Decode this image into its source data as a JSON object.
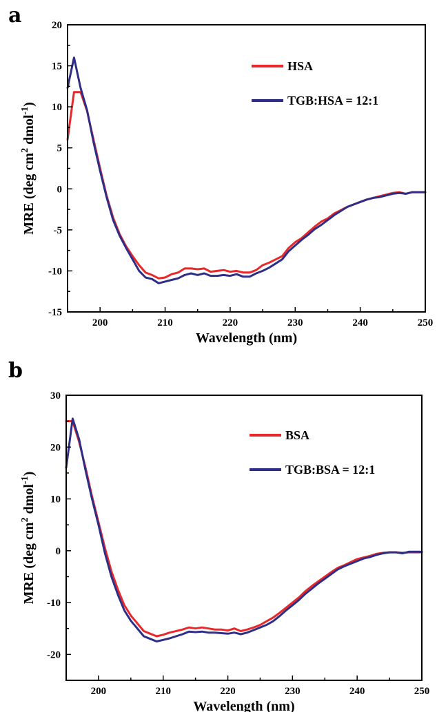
{
  "chart_data": [
    {
      "type": "line",
      "panel_label": "a",
      "xlabel": "Wavelength (nm)",
      "ylabel": "MRE (deg cm",
      "ylabel_sup": "2",
      "ylabel_mid": " dmol",
      "ylabel_sup2": "-1",
      "ylabel_end": ")",
      "xlim": [
        195,
        250
      ],
      "ylim": [
        -15,
        20
      ],
      "xticks": [
        200,
        210,
        220,
        230,
        240,
        250
      ],
      "yticks": [
        -15,
        -10,
        -5,
        0,
        5,
        10,
        15,
        20
      ],
      "legend_position": "top-right",
      "series": [
        {
          "name": "HSA",
          "color": "#e8282b",
          "x": [
            195,
            196,
            197,
            198,
            199,
            200,
            201,
            202,
            203,
            204,
            205,
            206,
            207,
            208,
            209,
            210,
            211,
            212,
            213,
            214,
            215,
            216,
            217,
            218,
            219,
            220,
            221,
            222,
            223,
            224,
            225,
            226,
            227,
            228,
            229,
            230,
            231,
            232,
            233,
            234,
            235,
            236,
            237,
            238,
            239,
            240,
            241,
            242,
            243,
            244,
            245,
            246,
            247,
            248,
            249,
            250
          ],
          "y": [
            6,
            11.8,
            11.8,
            9.5,
            6,
            2.5,
            -0.8,
            -3.5,
            -5.5,
            -7,
            -8.2,
            -9.3,
            -10.2,
            -10.5,
            -10.9,
            -10.8,
            -10.4,
            -10.2,
            -9.7,
            -9.7,
            -9.8,
            -9.7,
            -10.1,
            -10,
            -9.9,
            -10.1,
            -10,
            -10.2,
            -10.2,
            -9.9,
            -9.3,
            -9,
            -8.6,
            -8.2,
            -7.2,
            -6.5,
            -6,
            -5.3,
            -4.6,
            -4,
            -3.6,
            -3,
            -2.6,
            -2.2,
            -1.9,
            -1.6,
            -1.3,
            -1.1,
            -0.9,
            -0.7,
            -0.5,
            -0.4,
            -0.6,
            -0.4,
            -0.4,
            -0.4
          ]
        },
        {
          "name": "TGB:HSA = 12:1",
          "color": "#2e2e86",
          "x": [
            195,
            196,
            197,
            198,
            199,
            200,
            201,
            202,
            203,
            204,
            205,
            206,
            207,
            208,
            209,
            210,
            211,
            212,
            213,
            214,
            215,
            216,
            217,
            218,
            219,
            220,
            221,
            222,
            223,
            224,
            225,
            226,
            227,
            228,
            229,
            230,
            231,
            232,
            233,
            234,
            235,
            236,
            237,
            238,
            239,
            240,
            241,
            242,
            243,
            244,
            245,
            246,
            247,
            248,
            249,
            250
          ],
          "y": [
            12.3,
            16,
            12.3,
            9.6,
            5.7,
            2.2,
            -1,
            -3.8,
            -5.7,
            -7.2,
            -8.6,
            -10,
            -10.8,
            -11,
            -11.5,
            -11.3,
            -11.1,
            -10.9,
            -10.5,
            -10.3,
            -10.5,
            -10.3,
            -10.6,
            -10.6,
            -10.5,
            -10.6,
            -10.4,
            -10.7,
            -10.7,
            -10.3,
            -10,
            -9.6,
            -9.1,
            -8.6,
            -7.6,
            -6.9,
            -6.2,
            -5.6,
            -4.9,
            -4.4,
            -3.8,
            -3.2,
            -2.7,
            -2.2,
            -1.9,
            -1.6,
            -1.3,
            -1.1,
            -1,
            -0.8,
            -0.6,
            -0.5,
            -0.6,
            -0.4,
            -0.4,
            -0.4
          ]
        }
      ]
    },
    {
      "type": "line",
      "panel_label": "b",
      "xlabel": "Wavelength (nm)",
      "ylabel": "MRE (deg cm",
      "ylabel_sup": "2",
      "ylabel_mid": " dmol",
      "ylabel_sup2": "-1",
      "ylabel_end": ")",
      "xlim": [
        195,
        250
      ],
      "ylim": [
        -25,
        30
      ],
      "xticks": [
        200,
        210,
        220,
        230,
        240,
        250
      ],
      "yticks": [
        -20,
        -10,
        0,
        10,
        20,
        30
      ],
      "legend_position": "top-right",
      "series": [
        {
          "name": "BSA",
          "color": "#e8282b",
          "x": [
            195,
            196,
            197,
            198,
            199,
            200,
            201,
            202,
            203,
            204,
            205,
            206,
            207,
            208,
            209,
            210,
            211,
            212,
            213,
            214,
            215,
            216,
            217,
            218,
            219,
            220,
            221,
            222,
            223,
            224,
            225,
            226,
            227,
            228,
            229,
            230,
            231,
            232,
            233,
            234,
            235,
            236,
            237,
            238,
            239,
            240,
            241,
            242,
            243,
            244,
            245,
            246,
            247,
            248,
            249,
            250
          ],
          "y": [
            25,
            25,
            21,
            16,
            10.5,
            5.5,
            0.5,
            -4,
            -7.5,
            -10.5,
            -12.5,
            -14,
            -15.5,
            -16,
            -16.5,
            -16.2,
            -15.8,
            -15.5,
            -15.2,
            -14.8,
            -15,
            -14.8,
            -15,
            -15.2,
            -15.2,
            -15.4,
            -15,
            -15.5,
            -15.2,
            -14.8,
            -14.3,
            -13.6,
            -12.9,
            -12,
            -11,
            -10,
            -9,
            -7.8,
            -6.8,
            -5.9,
            -5,
            -4.1,
            -3.3,
            -2.8,
            -2.2,
            -1.6,
            -1.3,
            -1,
            -0.6,
            -0.4,
            -0.3,
            -0.3,
            -0.4,
            -0.3,
            -0.3,
            -0.3
          ]
        },
        {
          "name": "TGB:BSA = 12:1",
          "color": "#2e2e86",
          "x": [
            195,
            196,
            197,
            198,
            199,
            200,
            201,
            202,
            203,
            204,
            205,
            206,
            207,
            208,
            209,
            210,
            211,
            212,
            213,
            214,
            215,
            216,
            217,
            218,
            219,
            220,
            221,
            222,
            223,
            224,
            225,
            226,
            227,
            228,
            229,
            230,
            231,
            232,
            233,
            234,
            235,
            236,
            237,
            238,
            239,
            240,
            241,
            242,
            243,
            244,
            245,
            246,
            247,
            248,
            249,
            250
          ],
          "y": [
            16,
            25.5,
            21.5,
            15.5,
            10,
            5,
            -0.5,
            -5,
            -8.5,
            -11.5,
            -13.5,
            -15,
            -16.5,
            -17,
            -17.5,
            -17.2,
            -16.9,
            -16.5,
            -16.1,
            -15.6,
            -15.7,
            -15.6,
            -15.8,
            -15.8,
            -15.9,
            -16,
            -15.8,
            -16.1,
            -15.8,
            -15.3,
            -14.8,
            -14.3,
            -13.6,
            -12.6,
            -11.5,
            -10.5,
            -9.5,
            -8.3,
            -7.3,
            -6.3,
            -5.4,
            -4.5,
            -3.6,
            -3,
            -2.5,
            -2,
            -1.5,
            -1.2,
            -0.8,
            -0.5,
            -0.3,
            -0.3,
            -0.5,
            -0.2,
            -0.2,
            -0.2
          ]
        }
      ]
    }
  ]
}
